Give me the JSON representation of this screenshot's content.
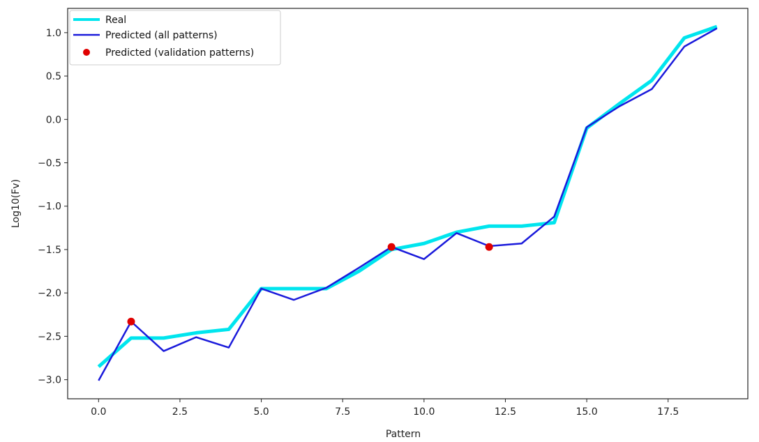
{
  "chart_data": {
    "type": "line",
    "xlabel": "Pattern",
    "ylabel": "Log10(Fv)",
    "xlim": [
      -0.95,
      19.95
    ],
    "ylim": [
      -3.22,
      1.28
    ],
    "xticks": [
      "0.0",
      "2.5",
      "5.0",
      "7.5",
      "10.0",
      "12.5",
      "15.0",
      "17.5"
    ],
    "yticks": [
      "1.0",
      "0.5",
      "0.0",
      "−0.5",
      "−1.0",
      "−1.5",
      "−2.0",
      "−2.5",
      "−3.0"
    ],
    "x": [
      0,
      1,
      2,
      3,
      4,
      5,
      6,
      7,
      8,
      9,
      10,
      11,
      12,
      13,
      14,
      15,
      16,
      17,
      18,
      19
    ],
    "series": [
      {
        "name": "Real",
        "kind": "line",
        "color": "#00e5ee",
        "values": [
          -2.85,
          -2.52,
          -2.52,
          -2.46,
          -2.42,
          -1.95,
          -1.95,
          -1.95,
          -1.75,
          -1.5,
          -1.43,
          -1.3,
          -1.23,
          -1.23,
          -1.19,
          -0.1,
          0.18,
          0.45,
          0.94,
          1.07
        ]
      },
      {
        "name": "Predicted (all patterns)",
        "kind": "line",
        "color": "#1a1adb",
        "values": [
          -3.01,
          -2.33,
          -2.67,
          -2.51,
          -2.63,
          -1.95,
          -2.08,
          -1.94,
          -1.71,
          -1.47,
          -1.61,
          -1.31,
          -1.46,
          -1.43,
          -1.12,
          -0.09,
          0.15,
          0.35,
          0.84,
          1.05
        ]
      },
      {
        "name": "Predicted (validation patterns)",
        "kind": "scatter",
        "color": "#e00000",
        "x": [
          1,
          9,
          12
        ],
        "values": [
          -2.33,
          -1.47,
          -1.47
        ]
      }
    ],
    "legend": {
      "position": "upper-left"
    },
    "grid": false
  }
}
